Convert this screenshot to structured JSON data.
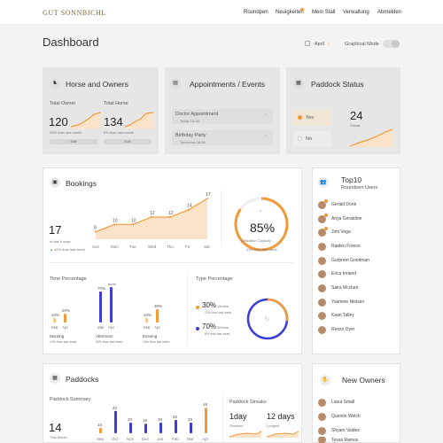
{
  "nav": {
    "logo": "GUT SONNBICHL",
    "links": [
      "Roundpen",
      "Neuigkeiten",
      "Mein Stall",
      "Verwaltung",
      "Abmelden"
    ]
  },
  "header": {
    "title": "Dashboard",
    "month": "April",
    "mode_label": "Graphical Mode"
  },
  "horse": {
    "title": "Horse and Owners",
    "owner_label": "Total Owner",
    "owner_value": "120",
    "owner_change": "20% than last month",
    "owner_edit": "Edit",
    "horse_label": "Total Horse",
    "horse_value": "134",
    "horse_change": "5% than last month",
    "horse_edit": "Edit"
  },
  "appointments": {
    "title": "Appointments / Events",
    "items": [
      {
        "name": "Doctor Appointment",
        "time": "Today 13:30"
      },
      {
        "name": "Birthday Party",
        "time": "Tomorrow 18:30"
      }
    ]
  },
  "paddock_status": {
    "title": "Paddock Status",
    "yes_label": "Yes",
    "no_label": "No",
    "value": "24",
    "sub": "Streak"
  },
  "bookings": {
    "title": "Bookings",
    "total": "17",
    "total_label": "In last 6 days",
    "change": "40% than last week",
    "utilization": "85%",
    "utilization_label": "Utilization Capacity",
    "utilization_change": "13% than last week",
    "time_pct_label": "Time Percentage",
    "type_pct_label": "Type Percentage",
    "slots": [
      {
        "name": "Morning",
        "change": "10% than last week"
      },
      {
        "name": "Afternoon",
        "change": "50% than last week"
      },
      {
        "name": "Evening",
        "change": "15% than last week"
      }
    ],
    "months": [
      "Mar",
      "Apr"
    ],
    "types": [
      {
        "value": "30%",
        "label": "15mins",
        "change": "12% than last week"
      },
      {
        "value": "70%",
        "label": "30mins",
        "change": "8% than last week"
      }
    ]
  },
  "chart_data": [
    {
      "type": "area",
      "categories": [
        "Sun",
        "Mon",
        "Tue",
        "Wed",
        "Thu",
        "Fri",
        "Sat"
      ],
      "values": [
        8,
        10,
        10,
        12,
        12,
        14,
        17
      ]
    },
    {
      "type": "bar",
      "categories": [
        "Morning",
        "Afternoon",
        "Evening"
      ],
      "series": [
        {
          "name": "Mar",
          "values": [
            10,
            70,
            10
          ]
        },
        {
          "name": "Apr",
          "values": [
            20,
            80,
            30
          ]
        }
      ]
    },
    {
      "type": "bar",
      "categories": [
        "Sep",
        "Oct",
        "Nov",
        "Dec",
        "Jan",
        "Feb",
        "Mar",
        "Apr"
      ],
      "values": [
        10,
        42,
        20,
        18,
        20,
        25,
        20,
        48
      ]
    }
  ],
  "utilization_fraction": 0.85,
  "top10": {
    "title": "Top10",
    "subtitle": "Roundpen Users",
    "users": [
      "Gerald Dook",
      "Anya Geraldine",
      "Jimi Vega",
      "Raiden Freece",
      "Gurpreet Goodman",
      "Erica Ireland",
      "Saira Mcclure",
      "Yasmine Nielsen",
      "Kaan Talley",
      "Renzo Dyer"
    ]
  },
  "paddocks": {
    "title": "Paddocks",
    "summary_label": "Paddock Summary",
    "value": "14",
    "value_label": "This Month",
    "streaks_label": "Paddock Streaks",
    "shortest_value": "1day",
    "shortest_label": "Shortest",
    "longest_value": "12 days",
    "longest_label": "Longest"
  },
  "new_owners": {
    "title": "New Owners",
    "users": [
      "Liana Small",
      "Quentin Welch",
      "Shyam Valdez",
      "Tessa Ramos"
    ]
  },
  "colors": {
    "accent": "#f29a3a",
    "blue": "#3d3dd6"
  }
}
